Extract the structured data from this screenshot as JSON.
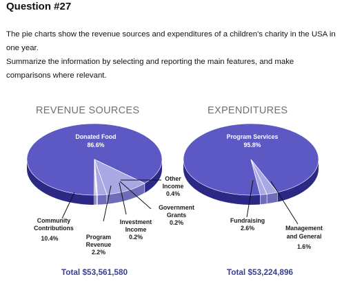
{
  "question": {
    "title": "Question #27",
    "line1": "The pie charts show the revenue sources and expenditures of a children's charity in the USA in",
    "line2": "one year.",
    "line3": "Summarize the information by selecting and reporting the main features, and make",
    "line4": "comparisons where relevant."
  },
  "colors": {
    "top": "#5c59c4",
    "side": "#2b2886",
    "light": "#a9a7e4",
    "light_side": "#6f6dba",
    "heading": "#6f6f78",
    "total": "#3a3f8f"
  },
  "chart_data": [
    {
      "type": "pie",
      "title": "REVENUE SOURCES",
      "total": "Total $53,561,580",
      "slices": [
        {
          "name": "Donated Food",
          "value": 86.6,
          "label": "86.6%"
        },
        {
          "name": "Community Contributions",
          "value": 10.4,
          "label": "10.4%"
        },
        {
          "name": "Program Revenue",
          "value": 2.2,
          "label": "2.2%"
        },
        {
          "name": "Investment Income",
          "value": 0.2,
          "label": "0.2%"
        },
        {
          "name": "Government Grants",
          "value": 0.2,
          "label": "0.2%"
        },
        {
          "name": "Other Income",
          "value": 0.4,
          "label": "0.4%"
        }
      ]
    },
    {
      "type": "pie",
      "title": "EXPENDITURES",
      "total": "Total $53,224,896",
      "slices": [
        {
          "name": "Program Services",
          "value": 95.8,
          "label": "95.8%"
        },
        {
          "name": "Fundraising",
          "value": 2.6,
          "label": "2.6%"
        },
        {
          "name": "Management and General",
          "value": 1.6,
          "label": "1.6%"
        }
      ]
    }
  ]
}
